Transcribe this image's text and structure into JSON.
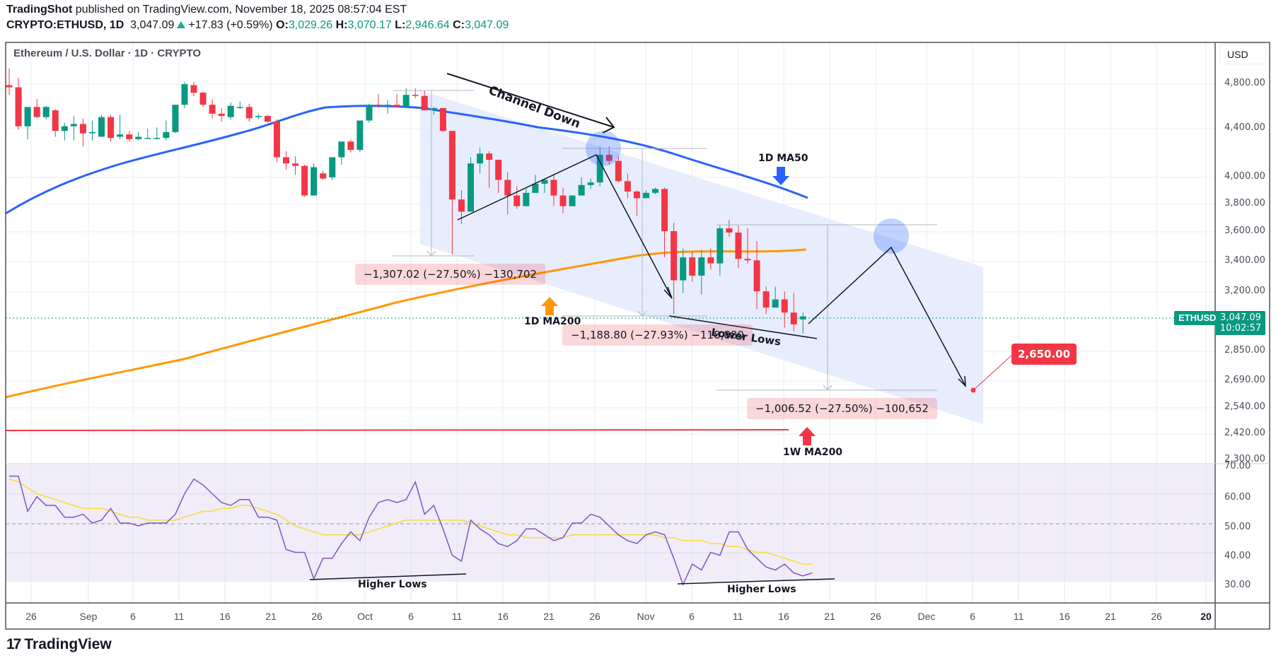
{
  "header": {
    "author": "TradingShot",
    "published_text": "published on TradingView.com, November 18, 2025 08:57:04 EST",
    "symbol": "CRYPTO:ETHUSD, 1D",
    "last_price": "3,047.09",
    "change": "+17.83 (+0.59%)",
    "open_label": "O:",
    "open": "3,029.26",
    "high_label": "H:",
    "high": "3,070.17",
    "low_label": "L:",
    "low": "2,946.64",
    "close_label": "C:",
    "close": "3,047.09"
  },
  "pane": {
    "title": "Ethereum / U.S. Dollar · 1D · CRYPTO",
    "currency_button": "USD",
    "symbol_tag": "ETHUSD",
    "price_tag": "3,047.09",
    "countdown": "10:02:57"
  },
  "annotations": {
    "channel_down": "Channel Down",
    "ma50_label": "1D MA50",
    "ma200_label": "1D MA200",
    "w_ma200_label": "1W MA200",
    "lower_lows": "Lower Lows",
    "higher_lows_1": "Higher Lows",
    "higher_lows_2": "Higher Lows",
    "measure_1": "−1,307.02 (−27.50%) −130,702",
    "measure_2": "−1,188.80 (−27.93%) −118,880",
    "measure_3": "−1,006.52 (−27.50%) −100,652",
    "target_price": "2,650.00"
  },
  "colors": {
    "up": "#089981",
    "down": "#f23645",
    "ma50": "#2962ff",
    "ma200": "#ff9800",
    "w_ma200": "#f23645",
    "rsi": "#7e57c2",
    "rsi_ma": "#fdd835",
    "channel_fill": "#e3eafd"
  },
  "footer": {
    "brand": "TradingView",
    "brand_mark": "17"
  },
  "chart_data": {
    "type": "candlestick",
    "title": "Ethereum / U.S. Dollar · 1D · CRYPTO",
    "price_axis": {
      "ticks": [
        "4,800.00",
        "4,400.00",
        "4,000.00",
        "3,800.00",
        "3,600.00",
        "3,400.00",
        "3,200.00",
        "2,850.00",
        "2,690.00",
        "2,540.00",
        "2,420.00",
        "2,300.00"
      ],
      "ylim": [
        2300,
        4950
      ],
      "scale": "log"
    },
    "rsi_axis": {
      "ticks": [
        "70.00",
        "60.00",
        "50.00",
        "40.00",
        "30.00"
      ],
      "ylim": [
        25,
        70
      ]
    },
    "x_axis": {
      "ticks": [
        "26",
        "Sep",
        "6",
        "11",
        "16",
        "21",
        "26",
        "Oct",
        "6",
        "11",
        "16",
        "21",
        "26",
        "Nov",
        "6",
        "11",
        "16",
        "21",
        "26",
        "Dec",
        "6",
        "11",
        "16",
        "21",
        "26",
        "20"
      ]
    },
    "grid": true,
    "last": {
      "symbol": "ETHUSD",
      "price": 3047.09,
      "countdown": "10:02:57"
    },
    "series": [
      {
        "name": "ETHUSD 1D candles (approx OHLC, Aug 24 – Nov 18 2025)",
        "candles": [
          [
            4790,
            4950,
            4700,
            4770
          ],
          [
            4770,
            4860,
            4390,
            4420
          ],
          [
            4420,
            4590,
            4310,
            4590
          ],
          [
            4590,
            4660,
            4490,
            4500
          ],
          [
            4500,
            4600,
            4480,
            4590
          ],
          [
            4560,
            4570,
            4330,
            4380
          ],
          [
            4380,
            4450,
            4300,
            4420
          ],
          [
            4420,
            4510,
            4300,
            4440
          ],
          [
            4440,
            4490,
            4250,
            4360
          ],
          [
            4360,
            4470,
            4300,
            4370
          ],
          [
            4330,
            4520,
            4340,
            4500
          ],
          [
            4500,
            4520,
            4290,
            4320
          ],
          [
            4330,
            4520,
            4310,
            4350
          ],
          [
            4350,
            4380,
            4290,
            4310
          ],
          [
            4310,
            4370,
            4300,
            4330
          ],
          [
            4320,
            4400,
            4320,
            4320
          ],
          [
            4320,
            4410,
            4310,
            4320
          ],
          [
            4320,
            4470,
            4300,
            4370
          ],
          [
            4370,
            4600,
            4360,
            4610
          ],
          [
            4610,
            4820,
            4580,
            4800
          ],
          [
            4790,
            4820,
            4690,
            4720
          ],
          [
            4720,
            4730,
            4590,
            4610
          ],
          [
            4610,
            4660,
            4490,
            4530
          ],
          [
            4530,
            4580,
            4460,
            4510
          ],
          [
            4500,
            4630,
            4480,
            4600
          ],
          [
            4590,
            4640,
            4570,
            4590
          ],
          [
            4590,
            4620,
            4460,
            4490
          ],
          [
            4500,
            4530,
            4480,
            4510
          ],
          [
            4510,
            4520,
            4450,
            4460
          ],
          [
            4460,
            4480,
            4120,
            4160
          ],
          [
            4160,
            4210,
            4060,
            4110
          ],
          [
            4110,
            4170,
            4020,
            4090
          ],
          [
            4090,
            4100,
            3850,
            3860
          ],
          [
            3860,
            4110,
            3870,
            4080
          ],
          [
            4030,
            4050,
            3980,
            3990
          ],
          [
            4000,
            4160,
            3980,
            4160
          ],
          [
            4160,
            4280,
            4100,
            4290
          ],
          [
            4290,
            4310,
            4200,
            4220
          ],
          [
            4220,
            4390,
            4200,
            4470
          ],
          [
            4470,
            4620,
            4450,
            4610
          ],
          [
            4610,
            4710,
            4580,
            4600
          ],
          [
            4600,
            4650,
            4530,
            4610
          ],
          [
            4610,
            4710,
            4600,
            4590
          ],
          [
            4590,
            4760,
            4580,
            4700
          ],
          [
            4700,
            4760,
            4670,
            4690
          ],
          [
            4690,
            4740,
            4560,
            4560
          ],
          [
            4560,
            4590,
            4520,
            4580
          ],
          [
            4580,
            4580,
            4370,
            4380
          ],
          [
            4380,
            4380,
            3440,
            3830
          ],
          [
            3830,
            3900,
            3650,
            3740
          ],
          [
            3740,
            4160,
            3760,
            4110
          ],
          [
            4110,
            4240,
            4030,
            4190
          ],
          [
            4190,
            4210,
            3920,
            4140
          ],
          [
            4140,
            4080,
            3880,
            3980
          ],
          [
            3980,
            4040,
            3720,
            3860
          ],
          [
            3860,
            3930,
            3760,
            3780
          ],
          [
            3780,
            3910,
            3780,
            3880
          ],
          [
            3880,
            4020,
            3890,
            3950
          ],
          [
            3950,
            3990,
            3880,
            3980
          ],
          [
            3980,
            4020,
            3780,
            3860
          ],
          [
            3860,
            3920,
            3730,
            3780
          ],
          [
            3780,
            3860,
            3790,
            3860
          ],
          [
            3860,
            4000,
            3860,
            3940
          ],
          [
            3940,
            3990,
            3910,
            3960
          ],
          [
            3960,
            4250,
            3930,
            4180
          ],
          [
            4180,
            4250,
            4100,
            4130
          ],
          [
            4130,
            4170,
            3960,
            3970
          ],
          [
            3970,
            4030,
            3840,
            3890
          ],
          [
            3890,
            3900,
            3710,
            3840
          ],
          [
            3840,
            3900,
            3850,
            3880
          ],
          [
            3880,
            3920,
            3870,
            3910
          ],
          [
            3910,
            3920,
            3420,
            3600
          ],
          [
            3600,
            3660,
            3060,
            3270
          ],
          [
            3270,
            3480,
            3190,
            3420
          ],
          [
            3420,
            3460,
            3260,
            3300
          ],
          [
            3300,
            3470,
            3180,
            3420
          ],
          [
            3420,
            3480,
            3340,
            3380
          ],
          [
            3380,
            3640,
            3300,
            3620
          ],
          [
            3620,
            3680,
            3560,
            3590
          ],
          [
            3590,
            3640,
            3350,
            3410
          ],
          [
            3410,
            3620,
            3380,
            3400
          ],
          [
            3400,
            3530,
            3090,
            3200
          ],
          [
            3200,
            3230,
            3060,
            3100
          ],
          [
            3100,
            3230,
            3110,
            3150
          ],
          [
            3150,
            3200,
            2980,
            3070
          ],
          [
            3070,
            3190,
            2960,
            3000
          ],
          [
            3029.26,
            3070.17,
            2946.64,
            3047.09
          ]
        ]
      },
      {
        "name": "1D MA50",
        "color": "#2962ff",
        "approx_values_start_end": [
          3750,
          3950
        ]
      },
      {
        "name": "1D MA200",
        "color": "#ff9800",
        "approx_values_start_end": [
          2600,
          3490
        ]
      },
      {
        "name": "1W MA200",
        "color": "#f23645",
        "approx_value": 2460
      },
      {
        "name": "RSI (14)",
        "color": "#7e57c2",
        "higher_lows": [
          [
            "Sep 25",
            31
          ],
          [
            "Oct 10",
            33
          ],
          [
            "Nov 3",
            29
          ],
          [
            "Nov 18",
            31
          ]
        ]
      },
      {
        "name": "RSI MA",
        "color": "#fdd835"
      }
    ],
    "projection": {
      "path": [
        [
          "Nov 18",
          3050
        ],
        [
          "Nov 27",
          3570
        ],
        [
          "Dec 6",
          2650
        ]
      ],
      "target": 2650.0
    },
    "measures": [
      {
        "label": "−1,307.02 (−27.50%) −130,702",
        "from": 4760,
        "to": 3453
      },
      {
        "label": "−1,188.80 (−27.93%) −118,880",
        "from": 4260,
        "to": 3071
      },
      {
        "label": "−1,006.52 (−27.50%) −100,652",
        "from": 3660,
        "to": 2654
      }
    ]
  }
}
